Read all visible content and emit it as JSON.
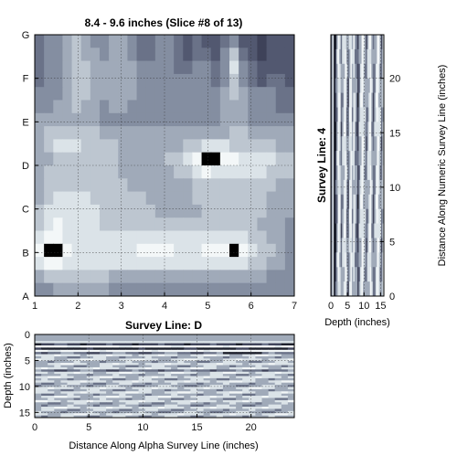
{
  "chart_data": [
    {
      "type": "heatmap",
      "title": "8.4 - 9.6 inches  (Slice #8 of 13)",
      "xlabel": "",
      "ylabel": "",
      "x_ticks": [
        "1",
        "2",
        "3",
        "4",
        "5",
        "6",
        "7"
      ],
      "y_ticks": [
        "A",
        "B",
        "C",
        "D",
        "E",
        "F",
        "G"
      ],
      "xlim": [
        1,
        7
      ],
      "ylim_categories": [
        "A",
        "G"
      ],
      "grid": true,
      "colormap": [
        "#3e4259",
        "#525870",
        "#6a7288",
        "#848ea1",
        "#a0aab9",
        "#bdc6d0",
        "#dbe3e8",
        "#f3f7f8"
      ],
      "values": [
        [
          2,
          3,
          3,
          4,
          5,
          4,
          3,
          3,
          4,
          4,
          3,
          2,
          2,
          3,
          3,
          2,
          1,
          2,
          1,
          1,
          2,
          3,
          1,
          1,
          0,
          1,
          1,
          1
        ],
        [
          2,
          3,
          3,
          4,
          5,
          4,
          4,
          3,
          4,
          4,
          3,
          2,
          2,
          3,
          3,
          2,
          1,
          2,
          2,
          1,
          3,
          5,
          2,
          1,
          0,
          1,
          1,
          1
        ],
        [
          2,
          3,
          3,
          4,
          5,
          5,
          4,
          4,
          4,
          4,
          4,
          3,
          3,
          3,
          3,
          2,
          2,
          3,
          3,
          2,
          3,
          6,
          3,
          2,
          1,
          1,
          1,
          1
        ],
        [
          2,
          3,
          3,
          4,
          5,
          5,
          4,
          4,
          4,
          4,
          4,
          3,
          3,
          3,
          3,
          3,
          3,
          3,
          3,
          2,
          3,
          5,
          3,
          2,
          1,
          2,
          2,
          1
        ],
        [
          3,
          3,
          3,
          4,
          5,
          5,
          4,
          4,
          4,
          4,
          4,
          3,
          3,
          3,
          3,
          3,
          3,
          3,
          3,
          3,
          4,
          5,
          4,
          3,
          3,
          3,
          2,
          2
        ],
        [
          3,
          3,
          4,
          4,
          5,
          4,
          4,
          3,
          4,
          4,
          3,
          3,
          3,
          3,
          3,
          3,
          3,
          3,
          3,
          3,
          4,
          4,
          4,
          3,
          3,
          3,
          2,
          2
        ],
        [
          4,
          4,
          4,
          4,
          4,
          4,
          4,
          3,
          3,
          3,
          3,
          3,
          3,
          3,
          3,
          3,
          3,
          3,
          3,
          3,
          4,
          4,
          4,
          3,
          3,
          3,
          3,
          3
        ],
        [
          4,
          5,
          5,
          5,
          5,
          5,
          5,
          4,
          4,
          4,
          4,
          4,
          4,
          4,
          4,
          4,
          4,
          4,
          4,
          4,
          4,
          5,
          5,
          4,
          4,
          4,
          4,
          4
        ],
        [
          4,
          5,
          6,
          6,
          6,
          5,
          5,
          5,
          5,
          4,
          4,
          4,
          4,
          4,
          4,
          4,
          5,
          5,
          6,
          6,
          6,
          5,
          5,
          5,
          5,
          5,
          4,
          4
        ],
        [
          4,
          4,
          5,
          5,
          5,
          5,
          5,
          5,
          5,
          4,
          4,
          4,
          4,
          4,
          5,
          5,
          6,
          7,
          8,
          8,
          7,
          7,
          6,
          6,
          6,
          6,
          5,
          5
        ],
        [
          4,
          5,
          5,
          5,
          5,
          5,
          5,
          5,
          5,
          4,
          4,
          4,
          4,
          4,
          4,
          5,
          5,
          6,
          7,
          6,
          6,
          6,
          6,
          6,
          6,
          5,
          5,
          5
        ],
        [
          4,
          5,
          5,
          5,
          5,
          5,
          5,
          5,
          5,
          5,
          4,
          4,
          4,
          4,
          4,
          4,
          4,
          5,
          5,
          5,
          5,
          5,
          5,
          5,
          5,
          5,
          4,
          4
        ],
        [
          4,
          5,
          6,
          6,
          6,
          6,
          5,
          5,
          5,
          5,
          5,
          5,
          4,
          4,
          4,
          4,
          4,
          5,
          5,
          5,
          5,
          5,
          5,
          5,
          5,
          4,
          4,
          4
        ],
        [
          5,
          6,
          6,
          6,
          6,
          6,
          6,
          5,
          5,
          5,
          5,
          5,
          5,
          4,
          4,
          4,
          4,
          4,
          5,
          5,
          5,
          5,
          5,
          5,
          5,
          4,
          4,
          4
        ],
        [
          5,
          6,
          7,
          6,
          6,
          6,
          6,
          5,
          5,
          5,
          5,
          5,
          5,
          5,
          5,
          5,
          5,
          5,
          5,
          5,
          5,
          5,
          5,
          5,
          4,
          4,
          4,
          3
        ],
        [
          6,
          7,
          7,
          6,
          6,
          6,
          6,
          6,
          6,
          6,
          6,
          6,
          6,
          6,
          6,
          6,
          6,
          6,
          6,
          6,
          6,
          6,
          6,
          5,
          5,
          4,
          4,
          3
        ],
        [
          7,
          8,
          8,
          7,
          6,
          6,
          6,
          6,
          6,
          6,
          6,
          7,
          7,
          7,
          7,
          6,
          6,
          6,
          7,
          7,
          7,
          8,
          7,
          6,
          5,
          5,
          4,
          3
        ],
        [
          6,
          7,
          7,
          6,
          6,
          6,
          6,
          6,
          6,
          6,
          6,
          6,
          6,
          6,
          6,
          6,
          6,
          6,
          6,
          6,
          6,
          6,
          6,
          5,
          5,
          4,
          4,
          3
        ],
        [
          4,
          5,
          5,
          5,
          5,
          5,
          5,
          5,
          4,
          4,
          4,
          4,
          4,
          4,
          4,
          4,
          4,
          4,
          4,
          4,
          4,
          4,
          4,
          4,
          4,
          3,
          3,
          3
        ],
        [
          3,
          3,
          4,
          4,
          4,
          4,
          4,
          4,
          3,
          3,
          3,
          3,
          3,
          3,
          3,
          3,
          3,
          3,
          3,
          3,
          3,
          3,
          3,
          3,
          3,
          3,
          3,
          3
        ]
      ]
    },
    {
      "type": "heatmap",
      "title": "",
      "ylabel_left": "Survey Line: 4",
      "xlabel": "Depth (inches)",
      "ylabel_right": "Distance Along Numeric Survey Line (inches)",
      "x_ticks": [
        "0",
        "5",
        "10",
        "15"
      ],
      "y_ticks": [
        "0",
        "5",
        "10",
        "15",
        "20"
      ],
      "xlim": [
        0,
        16
      ],
      "ylim": [
        0,
        24
      ],
      "grid": true,
      "colormap": [
        "#1b1e2a",
        "#3e4259",
        "#6a7288",
        "#a0aab9",
        "#dbe3e8",
        "#f3f7f8"
      ],
      "depth_profile": [
        2,
        4,
        0,
        1,
        3,
        5,
        4,
        2,
        3,
        4,
        5,
        3,
        2,
        4,
        5,
        3,
        4,
        3,
        2,
        1,
        3,
        4,
        5,
        4,
        3,
        2,
        3,
        4,
        5,
        3,
        2,
        3,
        4,
        5,
        4,
        3,
        2,
        4
      ]
    },
    {
      "type": "heatmap",
      "title": "Survey Line: D",
      "xlabel": "Distance Along Alpha Survey Line (inches)",
      "ylabel": "Depth (inches)",
      "x_ticks": [
        "0",
        "5",
        "10",
        "15",
        "20"
      ],
      "y_ticks": [
        "0",
        "5",
        "10",
        "15"
      ],
      "xlim": [
        0,
        24
      ],
      "ylim": [
        0,
        16
      ],
      "grid": true,
      "colormap": [
        "#1b1e2a",
        "#3e4259",
        "#6a7288",
        "#a0aab9",
        "#dbe3e8",
        "#f3f7f8"
      ],
      "depth_profile": [
        3,
        3,
        3,
        4,
        1,
        5,
        0,
        5,
        2,
        4,
        3,
        4,
        3,
        4,
        3,
        4,
        2,
        4,
        3,
        4,
        3,
        4,
        3,
        3,
        4,
        3,
        4,
        3,
        4,
        3,
        4,
        3,
        3,
        4,
        3,
        3,
        4,
        3
      ]
    }
  ]
}
